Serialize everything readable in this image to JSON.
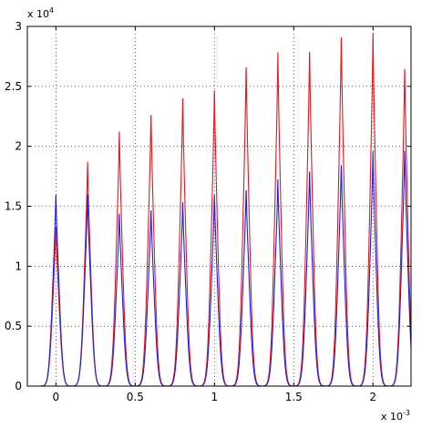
{
  "chart_data": {
    "type": "line",
    "title": "",
    "xlabel": "",
    "ylabel": "",
    "x_multiplier_label": "x 10",
    "x_multiplier_exponent": "-3",
    "y_multiplier_label": "x 10",
    "y_multiplier_exponent": "4",
    "xlim": [
      -0.00018,
      0.00224
    ],
    "ylim": [
      0,
      30000
    ],
    "grid": true,
    "legend": "none",
    "x_ticks": [
      0,
      0.0005,
      0.001,
      0.0015,
      0.002
    ],
    "x_tick_labels": [
      "0",
      "0.5",
      "1",
      "1.5",
      "2"
    ],
    "y_ticks": [
      0,
      5000,
      10000,
      15000,
      20000,
      25000,
      30000
    ],
    "y_tick_labels": [
      "0",
      "0.5",
      "1",
      "1.5",
      "2",
      "2.5",
      "3"
    ],
    "peak_width_sigma": 2.3e-05,
    "series": [
      {
        "color": "#e8161b",
        "peak_centers": [
          0,
          0.0002,
          0.0004,
          0.0006,
          0.0008,
          0.001,
          0.0012,
          0.0014,
          0.0016,
          0.0018,
          0.002,
          0.0022
        ],
        "peak_heights": [
          13500,
          18800,
          21400,
          23000,
          24100,
          24900,
          27000,
          27900,
          28200,
          29500,
          29500,
          26800
        ]
      },
      {
        "color": "#1f1fe0",
        "peak_centers": [
          0,
          0.0002,
          0.0004,
          0.0006,
          0.0008,
          0.001,
          0.0012,
          0.0014,
          0.0016,
          0.0018,
          0.002,
          0.0022
        ],
        "peak_heights": [
          16200,
          16100,
          14500,
          14900,
          15400,
          16100,
          16600,
          17300,
          18100,
          18700,
          19600,
          19900
        ]
      }
    ]
  }
}
